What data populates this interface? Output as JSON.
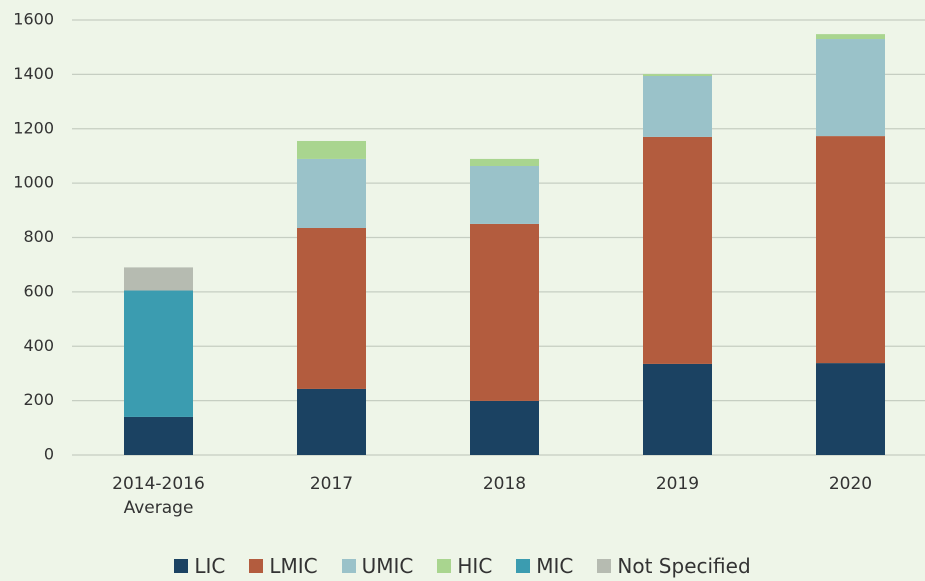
{
  "chart_data": {
    "type": "stacked_bar",
    "categories": [
      "2014-2016 Average",
      "2017",
      "2018",
      "2019",
      "2020"
    ],
    "series": [
      {
        "name": "LIC",
        "color": "#1b4262",
        "values": [
          140,
          243,
          199,
          335,
          338
        ]
      },
      {
        "name": "LMIC",
        "color": "#b35c3e",
        "values": [
          null,
          592,
          651,
          835,
          835
        ]
      },
      {
        "name": "UMIC",
        "color": "#9ac2c9",
        "values": [
          null,
          254,
          213,
          224,
          357
        ]
      },
      {
        "name": "HIC",
        "color": "#a9d58f",
        "values": [
          null,
          66,
          26,
          7,
          18
        ]
      },
      {
        "name": "MIC",
        "color": "#3b9cb0",
        "values": [
          465,
          null,
          null,
          null,
          null
        ]
      },
      {
        "name": "Not Specified",
        "color": "#b6bbb1",
        "values": [
          85,
          null,
          null,
          null,
          null
        ]
      }
    ],
    "ylim": [
      0,
      1600
    ],
    "yticks": [
      0,
      200,
      400,
      600,
      800,
      1000,
      1200,
      1400,
      1600
    ],
    "grid": true
  }
}
